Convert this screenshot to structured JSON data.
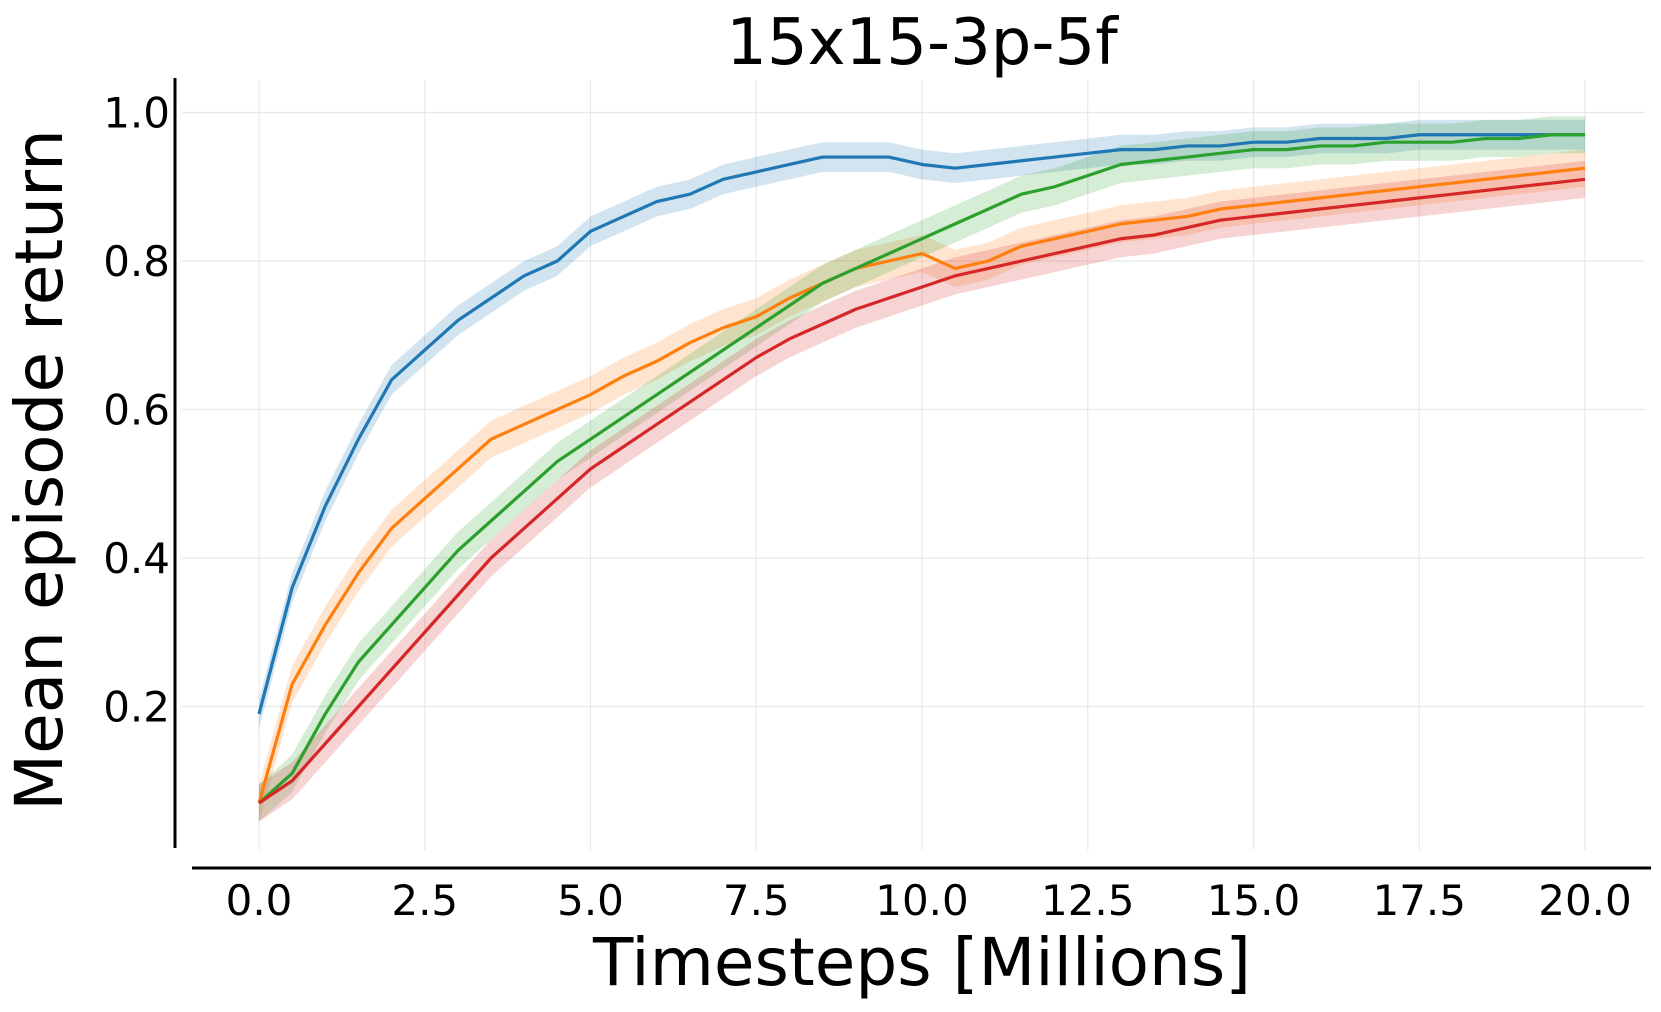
{
  "chart_data": {
    "type": "line",
    "title": "15x15-3p-5f",
    "xlabel": "Timesteps [Millions]",
    "ylabel": "Mean episode return",
    "xlim": [
      -1.0,
      20.5
    ],
    "ylim": [
      0.0,
      1.05
    ],
    "xticks": [
      "0.0",
      "2.5",
      "5.0",
      "7.5",
      "10.0",
      "12.5",
      "15.0",
      "17.5",
      "20.0"
    ],
    "yticks": [
      "0.2",
      "0.4",
      "0.6",
      "0.8",
      "1.0"
    ],
    "grid": true,
    "legend": "none",
    "band": "shaded variability around each line",
    "series": [
      {
        "color": "#1f77b4",
        "x": [
          0,
          0.5,
          1,
          1.5,
          2,
          2.5,
          3,
          3.5,
          4,
          4.5,
          5,
          5.5,
          6,
          6.5,
          7,
          7.5,
          8,
          8.5,
          9,
          9.5,
          10,
          10.5,
          11,
          11.5,
          12,
          12.5,
          13,
          13.5,
          14,
          14.5,
          15,
          15.5,
          16,
          16.5,
          17,
          17.5,
          18,
          18.5,
          19,
          19.5,
          20
        ],
        "y": [
          0.19,
          0.36,
          0.47,
          0.56,
          0.64,
          0.68,
          0.72,
          0.75,
          0.78,
          0.8,
          0.84,
          0.86,
          0.88,
          0.89,
          0.91,
          0.92,
          0.93,
          0.94,
          0.94,
          0.94,
          0.93,
          0.925,
          0.93,
          0.935,
          0.94,
          0.945,
          0.95,
          0.95,
          0.955,
          0.955,
          0.96,
          0.96,
          0.965,
          0.965,
          0.965,
          0.97,
          0.97,
          0.97,
          0.97,
          0.97,
          0.97
        ],
        "band": 0.02
      },
      {
        "color": "#ff7f0e",
        "x": [
          0,
          0.5,
          1,
          1.5,
          2,
          2.5,
          3,
          3.5,
          4,
          4.5,
          5,
          5.5,
          6,
          6.5,
          7,
          7.5,
          8,
          8.5,
          9,
          9.5,
          10,
          10.5,
          11,
          11.5,
          12,
          12.5,
          13,
          13.5,
          14,
          14.5,
          15,
          15.5,
          16,
          16.5,
          17,
          17.5,
          18,
          18.5,
          19,
          19.5,
          20
        ],
        "y": [
          0.07,
          0.23,
          0.31,
          0.38,
          0.44,
          0.48,
          0.52,
          0.56,
          0.58,
          0.6,
          0.62,
          0.645,
          0.665,
          0.69,
          0.71,
          0.725,
          0.75,
          0.77,
          0.79,
          0.8,
          0.81,
          0.79,
          0.8,
          0.82,
          0.83,
          0.84,
          0.85,
          0.855,
          0.86,
          0.87,
          0.875,
          0.88,
          0.885,
          0.89,
          0.895,
          0.9,
          0.905,
          0.91,
          0.915,
          0.92,
          0.925
        ],
        "band": 0.025
      },
      {
        "color": "#2ca02c",
        "x": [
          0,
          0.5,
          1,
          1.5,
          2,
          2.5,
          3,
          3.5,
          4,
          4.5,
          5,
          5.5,
          6,
          6.5,
          7,
          7.5,
          8,
          8.5,
          9,
          9.5,
          10,
          10.5,
          11,
          11.5,
          12,
          12.5,
          13,
          13.5,
          14,
          14.5,
          15,
          15.5,
          16,
          16.5,
          17,
          17.5,
          18,
          18.5,
          19,
          19.5,
          20
        ],
        "y": [
          0.07,
          0.11,
          0.19,
          0.26,
          0.31,
          0.36,
          0.41,
          0.45,
          0.49,
          0.53,
          0.56,
          0.59,
          0.62,
          0.65,
          0.68,
          0.71,
          0.74,
          0.77,
          0.79,
          0.81,
          0.83,
          0.85,
          0.87,
          0.89,
          0.9,
          0.915,
          0.93,
          0.935,
          0.94,
          0.945,
          0.95,
          0.95,
          0.955,
          0.955,
          0.96,
          0.96,
          0.96,
          0.965,
          0.965,
          0.97,
          0.97
        ],
        "band": 0.025
      },
      {
        "color": "#d62728",
        "x": [
          0,
          0.5,
          1,
          1.5,
          2,
          2.5,
          3,
          3.5,
          4,
          4.5,
          5,
          5.5,
          6,
          6.5,
          7,
          7.5,
          8,
          8.5,
          9,
          9.5,
          10,
          10.5,
          11,
          11.5,
          12,
          12.5,
          13,
          13.5,
          14,
          14.5,
          15,
          15.5,
          16,
          16.5,
          17,
          17.5,
          18,
          18.5,
          19,
          19.5,
          20
        ],
        "y": [
          0.07,
          0.1,
          0.15,
          0.2,
          0.25,
          0.3,
          0.35,
          0.4,
          0.44,
          0.48,
          0.52,
          0.55,
          0.58,
          0.61,
          0.64,
          0.67,
          0.695,
          0.715,
          0.735,
          0.75,
          0.765,
          0.78,
          0.79,
          0.8,
          0.81,
          0.82,
          0.83,
          0.835,
          0.845,
          0.855,
          0.86,
          0.865,
          0.87,
          0.875,
          0.88,
          0.885,
          0.89,
          0.895,
          0.9,
          0.905,
          0.91
        ],
        "band": 0.025
      }
    ]
  }
}
